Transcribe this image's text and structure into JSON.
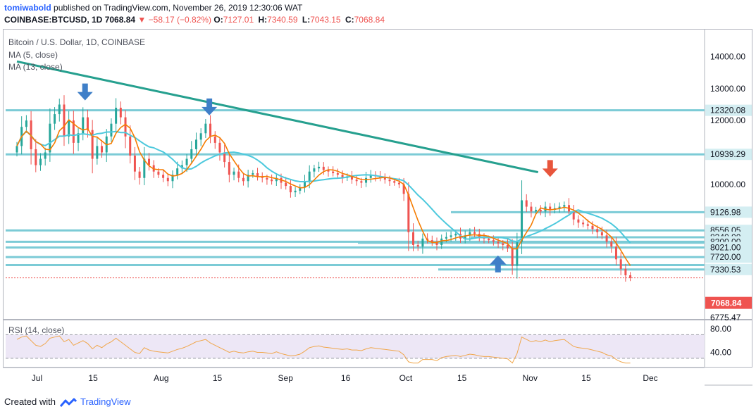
{
  "header": {
    "publisher": "tomiwabold",
    "published_text": "published on TradingView.com, November 26, 2019 12:30:06 WAT",
    "symbol": "COINBASE:BTCUSD, 1D",
    "last": "7068.84",
    "change_arrow": "▼",
    "change": "−58.17 (−0.82%)",
    "o_label": "O:",
    "o_value": "7127.01",
    "h_label": "H:",
    "h_value": "7340.59",
    "l_label": "L:",
    "l_value": "7043.15",
    "c_label": "C:",
    "c_value": "7068.84"
  },
  "legend": {
    "title": "Bitcoin / U.S. Dollar, 1D, COINBASE",
    "ma5": "MA (5, close)",
    "ma13": "MA (13, close)",
    "rsi": "RSI (14, close)"
  },
  "footer": {
    "created_with": "Created with",
    "brand": "TradingView"
  },
  "colors": {
    "up": "#26a69a",
    "down": "#ef5350",
    "ma5": "#f57c00",
    "ma13": "#4dc9dd",
    "level": "#7ccbd6",
    "trend": "#26a08f",
    "arrow_blue": "#3f7fc8",
    "arrow_red": "#e8553c",
    "rsi": "#f0a64a",
    "rsi_band": "#ede7f6"
  },
  "chart_data": [
    {
      "type": "candlestick",
      "title": "Bitcoin / U.S. Dollar, 1D, COINBASE",
      "y_axis_ticks": [
        14000,
        13000,
        12000,
        10000
      ],
      "y_axis_labels": [
        "14000.00",
        "13000.00",
        "12000.00",
        "10000.00"
      ],
      "ylim": [
        6700,
        14700
      ],
      "x_axis_labels": [
        "Jul",
        "15",
        "Aug",
        "15",
        "Sep",
        "16",
        "Oct",
        "15",
        "Nov",
        "15",
        "Dec"
      ],
      "x_axis_dates": [
        "2019-07-01",
        "2019-07-15",
        "2019-08-01",
        "2019-08-15",
        "2019-09-01",
        "2019-09-16",
        "2019-10-01",
        "2019-10-15",
        "2019-11-01",
        "2019-11-15",
        "2019-12-01"
      ],
      "date_range": [
        "2019-06-26",
        "2019-11-26"
      ],
      "close": [
        11200,
        11800,
        12000,
        11100,
        10600,
        10800,
        11000,
        11900,
        12200,
        12500,
        11500,
        12000,
        11300,
        11600,
        12100,
        11700,
        10800,
        11200,
        11000,
        11500,
        11900,
        12400,
        12100,
        11500,
        10900,
        10400,
        10200,
        10800,
        10600,
        10400,
        10300,
        10200,
        10100,
        10300,
        10500,
        10600,
        10800,
        11100,
        11400,
        11600,
        11900,
        11500,
        11300,
        11000,
        10700,
        10300,
        10400,
        10200,
        10100,
        10300,
        10350,
        10250,
        10200,
        10150,
        10100,
        10200,
        10050,
        9950,
        9750,
        9800,
        9900,
        10100,
        10400,
        10500,
        10550,
        10450,
        10400,
        10350,
        10300,
        10200,
        10250,
        10150,
        10100,
        10050,
        10200,
        10300,
        10250,
        10200,
        10150,
        10100,
        10050,
        10000,
        9700,
        8500,
        8100,
        8050,
        8300,
        8250,
        8200,
        8100,
        8300,
        8350,
        8400,
        8450,
        8300,
        8400,
        8500,
        8450,
        8350,
        8300,
        8250,
        8200,
        8150,
        8100,
        8000,
        7450,
        8200,
        9500,
        9300,
        9150,
        9200,
        9150,
        9300,
        9200,
        9250,
        9300,
        9350,
        9150,
        8900,
        8800,
        8750,
        8700,
        8600,
        8500,
        8400,
        8200,
        8050,
        7650,
        7350,
        7150,
        7068.84
      ],
      "ma_series": [
        {
          "name": "MA (5, close)"
        },
        {
          "name": "MA (13, close)"
        }
      ],
      "horizontal_levels": [
        12320.08,
        10939.29,
        9126.98,
        8556.05,
        8340.0,
        8200.0,
        8021.0,
        7720.0,
        7330.53
      ],
      "level_labels": [
        "12320.08",
        "10939.29",
        "9126.98",
        "8556.05",
        "8340.00",
        "8200.00",
        "8021.00",
        "7720.00",
        "7330.53"
      ],
      "last_price": 7068.84,
      "last_price_label": "7068.84",
      "extra_axis_label": "6775.47",
      "trendline": {
        "start": {
          "date": "2019-06-26",
          "value": 13850
        },
        "end": {
          "date": "2019-11-03",
          "value": 10380
        }
      },
      "annotations": [
        {
          "type": "down-arrow",
          "color": "blue",
          "date": "2019-07-13",
          "value": 12850
        },
        {
          "type": "down-arrow",
          "color": "blue",
          "date": "2019-08-13",
          "value": 12380
        },
        {
          "type": "up-arrow",
          "color": "blue",
          "date": "2019-10-24",
          "value": 7330
        },
        {
          "type": "down-arrow",
          "color": "red",
          "date": "2019-11-06",
          "value": 10450
        }
      ]
    },
    {
      "type": "line",
      "title": "RSI (14, close)",
      "ylim": [
        20,
        90
      ],
      "y_axis_ticks": [
        80,
        40
      ],
      "y_axis_labels": [
        "80.00",
        "40.00"
      ],
      "band": [
        30,
        70
      ],
      "values": [
        62,
        66,
        68,
        60,
        52,
        50,
        55,
        64,
        66,
        68,
        58,
        62,
        52,
        56,
        60,
        55,
        46,
        52,
        48,
        54,
        58,
        64,
        58,
        52,
        46,
        40,
        38,
        48,
        44,
        42,
        41,
        40,
        39,
        42,
        45,
        47,
        50,
        54,
        58,
        60,
        62,
        56,
        52,
        48,
        44,
        40,
        42,
        40,
        39,
        41,
        42,
        40,
        40,
        39,
        38,
        41,
        38,
        36,
        34,
        35,
        37,
        42,
        48,
        50,
        51,
        49,
        48,
        47,
        46,
        45,
        46,
        44,
        44,
        43,
        46,
        48,
        47,
        46,
        45,
        44,
        43,
        42,
        36,
        24,
        22,
        22,
        28,
        28,
        28,
        26,
        31,
        33,
        34,
        35,
        33,
        35,
        37,
        36,
        34,
        33,
        33,
        32,
        31,
        30,
        29,
        22,
        38,
        66,
        62,
        58,
        60,
        58,
        61,
        58,
        60,
        61,
        62,
        56,
        50,
        48,
        47,
        46,
        44,
        42,
        40,
        36,
        34,
        28,
        24,
        22,
        22
      ]
    }
  ]
}
